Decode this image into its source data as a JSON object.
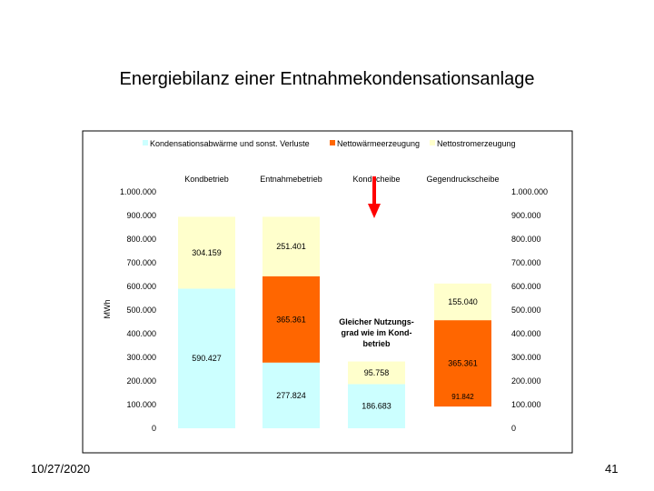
{
  "slide": {
    "title": "Energiebilanz einer Entnahmekondensationsanlage",
    "date": "10/27/2020",
    "page_number": "41"
  },
  "colors": {
    "kondensation": "#ccffff",
    "netto_waerme": "#ff6600",
    "netto_strom": "#ffffcc",
    "arrow": "#ff0000"
  },
  "chart_data": {
    "type": "bar",
    "stacked": true,
    "ylabel": "MWh",
    "ylim": [
      0,
      1000000
    ],
    "yticks": [
      "0",
      "100.000",
      "200.000",
      "300.000",
      "400.000",
      "500.000",
      "600.000",
      "700.000",
      "800.000",
      "900.000",
      "1.000.000"
    ],
    "legend_position": "top",
    "categories": [
      "Kondbetrieb",
      "Entnahmebetrieb",
      "Kondscheibe",
      "Gegendruckscheibe"
    ],
    "series": [
      {
        "name": "Kondensationsabwärme und sonst. Verluste",
        "key": "kondensation",
        "values": [
          590427,
          277824,
          186683,
          0
        ],
        "labels": [
          "590.427",
          "277.824",
          "186.683",
          ""
        ]
      },
      {
        "name": "Nettowärmeerzeugung",
        "key": "netto_waerme",
        "values": [
          0,
          365361,
          0,
          365361
        ],
        "labels": [
          "",
          "365.361",
          "",
          "365.361"
        ]
      },
      {
        "name": "Nettostromerzeugung",
        "key": "netto_strom",
        "values": [
          304159,
          251401,
          95758,
          155040
        ],
        "labels": [
          "304.159",
          "251.401",
          "95.758",
          "155.040"
        ]
      }
    ],
    "floats": [
      0,
      0,
      0,
      91842
    ],
    "float_labels": [
      "",
      "",
      "",
      "91.842"
    ],
    "annotations": [
      {
        "text": "Gleicher Nutzungs-",
        "category": 2
      },
      {
        "text": "grad wie im Kond-",
        "category": 2
      },
      {
        "text": "betrieb",
        "category": 2
      }
    ]
  }
}
